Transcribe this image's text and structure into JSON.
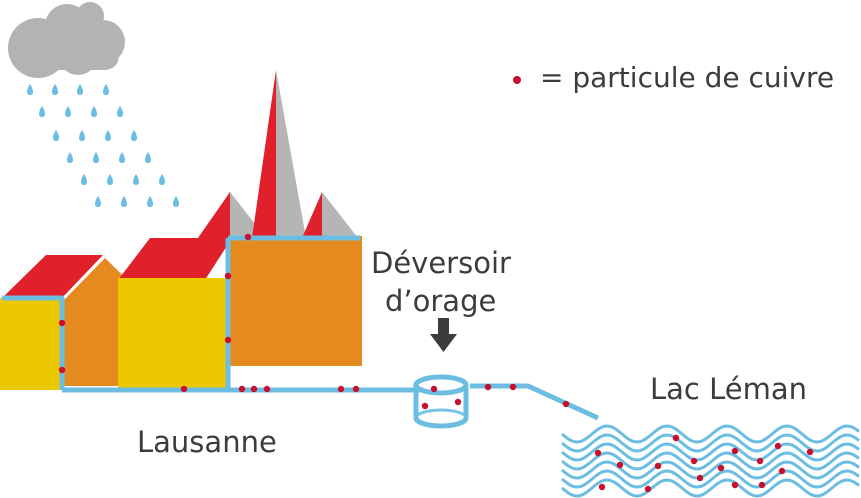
{
  "legend": {
    "text": "= particule de cuivre",
    "symbol": "red-dot"
  },
  "labels": {
    "deversoir_line1": "Déversoir",
    "deversoir_line2": "d’orage",
    "city": "Lausanne",
    "lake": "Lac Léman"
  },
  "colors": {
    "pipe": "#6cbde2",
    "water": "#6cbde2",
    "rain": "#6cbde2",
    "particle": "#c8102e",
    "roof_red": "#e0202a",
    "roof_gray": "#b5b5b5",
    "wall_yellow": "#ecc800",
    "wall_orange": "#e58a1f",
    "cloud": "#b3b3b3",
    "arrow": "#3c3c3c",
    "text": "#3c3c3c"
  }
}
